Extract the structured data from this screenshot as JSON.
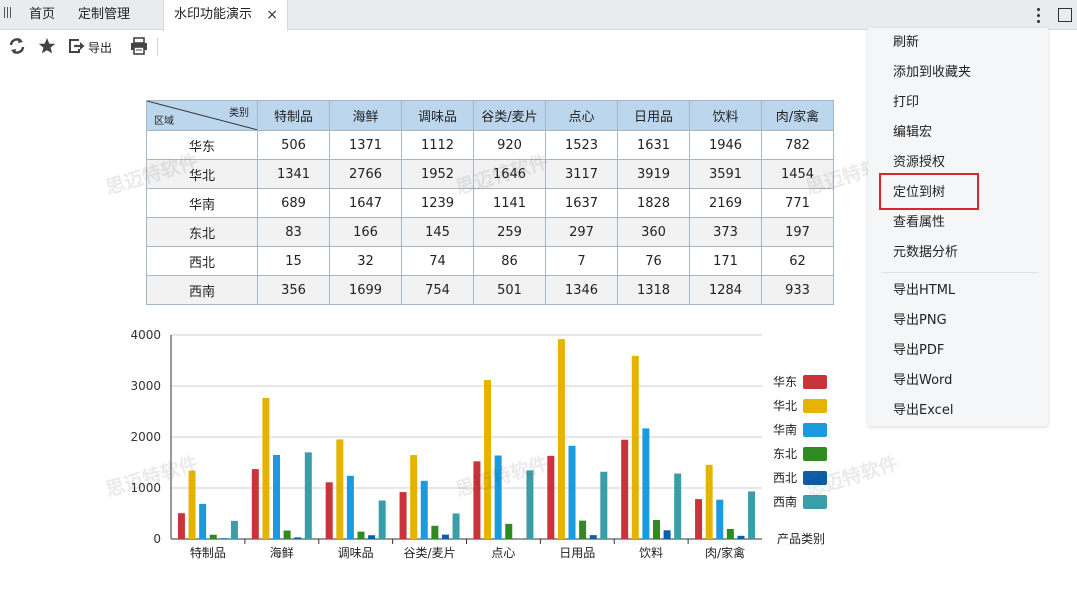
{
  "tabs": [
    {
      "label": "首页"
    },
    {
      "label": "定制管理"
    },
    {
      "label": "水印功能演示",
      "close": "×"
    }
  ],
  "toolbar": {
    "icons": [
      "refresh-icon",
      "star-icon",
      "export-icon",
      "print-icon"
    ],
    "export_label": "导出"
  },
  "watermark": "思迈特软件",
  "table": {
    "corner_top": "类别",
    "corner_bottom": "区域",
    "columns": [
      "特制品",
      "海鲜",
      "调味品",
      "谷类/麦片",
      "点心",
      "日用品",
      "饮料",
      "肉/家禽"
    ],
    "rows": [
      {
        "region": "华东",
        "values": [
          "506",
          "1371",
          "1112",
          "920",
          "1523",
          "1631",
          "1946",
          "782"
        ]
      },
      {
        "region": "华北",
        "values": [
          "1341",
          "2766",
          "1952",
          "1646",
          "3117",
          "3919",
          "3591",
          "1454"
        ]
      },
      {
        "region": "华南",
        "values": [
          "689",
          "1647",
          "1239",
          "1141",
          "1637",
          "1828",
          "2169",
          "771"
        ]
      },
      {
        "region": "东北",
        "values": [
          "83",
          "166",
          "145",
          "259",
          "297",
          "360",
          "373",
          "197"
        ]
      },
      {
        "region": "西北",
        "values": [
          "15",
          "32",
          "74",
          "86",
          "7",
          "76",
          "171",
          "62"
        ]
      },
      {
        "region": "西南",
        "values": [
          "356",
          "1699",
          "754",
          "501",
          "1346",
          "1318",
          "1284",
          "933"
        ]
      }
    ]
  },
  "chart_data": {
    "type": "bar",
    "title": "",
    "xlabel": "产品类别",
    "ylabel": "",
    "ylim": [
      0,
      4000
    ],
    "yticks": [
      "0",
      "1000",
      "2000",
      "3000",
      "4000"
    ],
    "categories": [
      "特制品",
      "海鲜",
      "调味品",
      "谷类/麦片",
      "点心",
      "日用品",
      "饮料",
      "肉/家禽"
    ],
    "series": [
      {
        "name": "华东",
        "color": "#c9343a",
        "values": [
          506,
          1371,
          1112,
          920,
          1523,
          1631,
          1946,
          782
        ]
      },
      {
        "name": "华北",
        "color": "#e6b400",
        "values": [
          1341,
          2766,
          1952,
          1646,
          3117,
          3919,
          3591,
          1454
        ]
      },
      {
        "name": "华南",
        "color": "#1a9be0",
        "values": [
          689,
          1647,
          1239,
          1141,
          1637,
          1828,
          2169,
          771
        ]
      },
      {
        "name": "东北",
        "color": "#2f8a22",
        "values": [
          83,
          166,
          145,
          259,
          297,
          360,
          373,
          197
        ]
      },
      {
        "name": "西北",
        "color": "#0f5ea8",
        "values": [
          15,
          32,
          74,
          86,
          7,
          76,
          171,
          62
        ]
      },
      {
        "name": "西南",
        "color": "#3a9ea8",
        "values": [
          356,
          1699,
          754,
          501,
          1346,
          1318,
          1284,
          933
        ]
      }
    ],
    "grid": true,
    "legend": "right"
  },
  "context_menu": {
    "items": [
      "刷新",
      "添加到收藏夹",
      "打印",
      "编辑宏",
      "资源授权",
      "定位到树",
      "查看属性",
      "元数据分析"
    ],
    "export_items": [
      "导出HTML",
      "导出PNG",
      "导出PDF",
      "导出Word",
      "导出Excel"
    ],
    "highlighted": "定位到树",
    "highlight_color": "#d9262c"
  }
}
